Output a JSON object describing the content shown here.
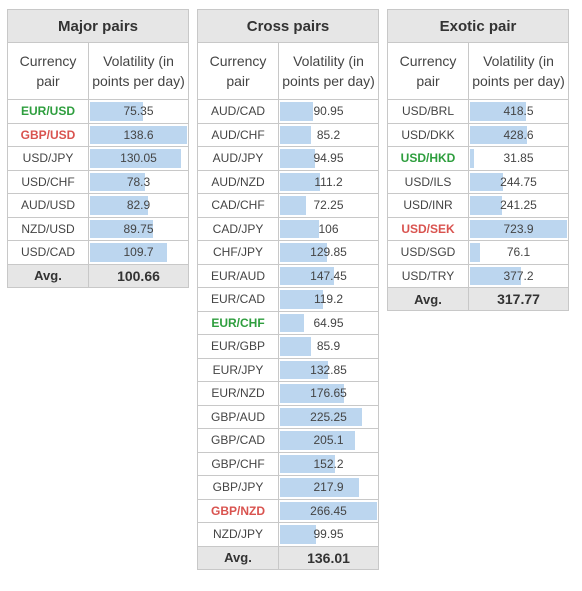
{
  "tables": [
    {
      "key": "major",
      "title": "Major pairs",
      "header_pair": "Currency pair",
      "header_vol": "Volatility (in points per day)",
      "avg_label": "Avg.",
      "avg_value": "100.66",
      "rows": [
        {
          "pair": "EUR/USD",
          "value": "75.35",
          "color": "green"
        },
        {
          "pair": "GBP/USD",
          "value": "138.6",
          "color": "red"
        },
        {
          "pair": "USD/JPY",
          "value": "130.05"
        },
        {
          "pair": "USD/CHF",
          "value": "78.3"
        },
        {
          "pair": "AUD/USD",
          "value": "82.9"
        },
        {
          "pair": "NZD/USD",
          "value": "89.75"
        },
        {
          "pair": "USD/CAD",
          "value": "109.7"
        }
      ]
    },
    {
      "key": "cross",
      "title": "Cross pairs",
      "header_pair": "Currency pair",
      "header_vol": "Volatility (in points per day)",
      "avg_label": "Avg.",
      "avg_value": "136.01",
      "rows": [
        {
          "pair": "AUD/CAD",
          "value": "90.95"
        },
        {
          "pair": "AUD/CHF",
          "value": "85.2"
        },
        {
          "pair": "AUD/JPY",
          "value": "94.95"
        },
        {
          "pair": "AUD/NZD",
          "value": "111.2"
        },
        {
          "pair": "CAD/CHF",
          "value": "72.25"
        },
        {
          "pair": "CAD/JPY",
          "value": "106"
        },
        {
          "pair": "CHF/JPY",
          "value": "129.85"
        },
        {
          "pair": "EUR/AUD",
          "value": "147.45"
        },
        {
          "pair": "EUR/CAD",
          "value": "119.2"
        },
        {
          "pair": "EUR/CHF",
          "value": "64.95",
          "color": "green"
        },
        {
          "pair": "EUR/GBP",
          "value": "85.9"
        },
        {
          "pair": "EUR/JPY",
          "value": "132.85"
        },
        {
          "pair": "EUR/NZD",
          "value": "176.65"
        },
        {
          "pair": "GBP/AUD",
          "value": "225.25"
        },
        {
          "pair": "GBP/CAD",
          "value": "205.1"
        },
        {
          "pair": "GBP/CHF",
          "value": "152.2"
        },
        {
          "pair": "GBP/JPY",
          "value": "217.9"
        },
        {
          "pair": "GBP/NZD",
          "value": "266.45",
          "color": "red"
        },
        {
          "pair": "NZD/JPY",
          "value": "99.95"
        }
      ]
    },
    {
      "key": "exotic",
      "title": "Exotic pair",
      "header_pair": "Currency pair",
      "header_vol": "Volatility (in points per day)",
      "avg_label": "Avg.",
      "avg_value": "317.77",
      "rows": [
        {
          "pair": "USD/BRL",
          "value": "418.5"
        },
        {
          "pair": "USD/DKK",
          "value": "428.6"
        },
        {
          "pair": "USD/HKD",
          "value": "31.85",
          "color": "green"
        },
        {
          "pair": "USD/ILS",
          "value": "244.75"
        },
        {
          "pair": "USD/INR",
          "value": "241.25"
        },
        {
          "pair": "USD/SEK",
          "value": "723.9",
          "color": "red"
        },
        {
          "pair": "USD/SGD",
          "value": "76.1"
        },
        {
          "pair": "USD/TRY",
          "value": "377.2"
        }
      ]
    }
  ],
  "colors": {
    "bar": "#bcd6ef",
    "green": "#2e9e3e",
    "red": "#d9534f",
    "header_bg": "#e6e6e6"
  }
}
